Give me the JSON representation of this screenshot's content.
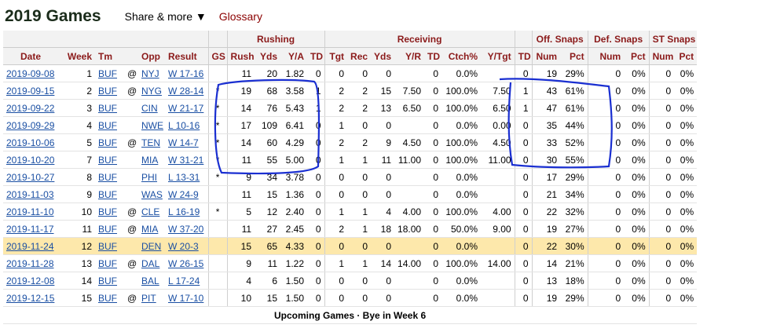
{
  "header": {
    "title": "2019 Games",
    "share_label": "Share & more ▼",
    "glossary_label": "Glossary"
  },
  "groups": {
    "rushing": "Rushing",
    "receiving": "Receiving",
    "off_snaps": "Off. Snaps",
    "def_snaps": "Def. Snaps",
    "st_snaps": "ST Snaps"
  },
  "columns": [
    "Date",
    "Week",
    "Tm",
    "",
    "Opp",
    "Result",
    "GS",
    "Rush",
    "Yds",
    "Y/A",
    "TD",
    "Tgt",
    "Rec",
    "Yds",
    "Y/R",
    "TD",
    "Ctch%",
    "Y/Tgt",
    "TD",
    "Num",
    "Pct",
    "Num",
    "Pct",
    "Num",
    "Pct"
  ],
  "rows": [
    [
      "2019-09-08",
      "1",
      "BUF",
      "@",
      "NYJ",
      "W 17-16",
      "",
      "11",
      "20",
      "1.82",
      "0",
      "0",
      "0",
      "0",
      "",
      "0",
      "0.0%",
      "",
      "0",
      "19",
      "29%",
      "0",
      "0%",
      "0",
      "0%"
    ],
    [
      "2019-09-15",
      "2",
      "BUF",
      "@",
      "NYG",
      "W 28-14",
      "*",
      "19",
      "68",
      "3.58",
      "1",
      "2",
      "2",
      "15",
      "7.50",
      "0",
      "100.0%",
      "7.50",
      "1",
      "43",
      "61%",
      "0",
      "0%",
      "0",
      "0%"
    ],
    [
      "2019-09-22",
      "3",
      "BUF",
      "",
      "CIN",
      "W 21-17",
      "*",
      "14",
      "76",
      "5.43",
      "1",
      "2",
      "2",
      "13",
      "6.50",
      "0",
      "100.0%",
      "6.50",
      "1",
      "47",
      "61%",
      "0",
      "0%",
      "0",
      "0%"
    ],
    [
      "2019-09-29",
      "4",
      "BUF",
      "",
      "NWE",
      "L 10-16",
      "*",
      "17",
      "109",
      "6.41",
      "0",
      "1",
      "0",
      "0",
      "",
      "0",
      "0.0%",
      "0.00",
      "0",
      "35",
      "44%",
      "0",
      "0%",
      "0",
      "0%"
    ],
    [
      "2019-10-06",
      "5",
      "BUF",
      "@",
      "TEN",
      "W 14-7",
      "*",
      "14",
      "60",
      "4.29",
      "0",
      "2",
      "2",
      "9",
      "4.50",
      "0",
      "100.0%",
      "4.50",
      "0",
      "33",
      "52%",
      "0",
      "0%",
      "0",
      "0%"
    ],
    [
      "2019-10-20",
      "7",
      "BUF",
      "",
      "MIA",
      "W 31-21",
      "*",
      "11",
      "55",
      "5.00",
      "0",
      "1",
      "1",
      "11",
      "11.00",
      "0",
      "100.0%",
      "11.00",
      "0",
      "30",
      "55%",
      "0",
      "0%",
      "0",
      "0%"
    ],
    [
      "2019-10-27",
      "8",
      "BUF",
      "",
      "PHI",
      "L 13-31",
      "*",
      "9",
      "34",
      "3.78",
      "0",
      "0",
      "0",
      "0",
      "",
      "0",
      "0.0%",
      "",
      "0",
      "17",
      "29%",
      "0",
      "0%",
      "0",
      "0%"
    ],
    [
      "2019-11-03",
      "9",
      "BUF",
      "",
      "WAS",
      "W 24-9",
      "",
      "11",
      "15",
      "1.36",
      "0",
      "0",
      "0",
      "0",
      "",
      "0",
      "0.0%",
      "",
      "0",
      "21",
      "34%",
      "0",
      "0%",
      "0",
      "0%"
    ],
    [
      "2019-11-10",
      "10",
      "BUF",
      "@",
      "CLE",
      "L 16-19",
      "*",
      "5",
      "12",
      "2.40",
      "0",
      "1",
      "1",
      "4",
      "4.00",
      "0",
      "100.0%",
      "4.00",
      "0",
      "22",
      "32%",
      "0",
      "0%",
      "0",
      "0%"
    ],
    [
      "2019-11-17",
      "11",
      "BUF",
      "@",
      "MIA",
      "W 37-20",
      "",
      "11",
      "27",
      "2.45",
      "0",
      "2",
      "1",
      "18",
      "18.00",
      "0",
      "50.0%",
      "9.00",
      "0",
      "19",
      "27%",
      "0",
      "0%",
      "0",
      "0%"
    ],
    [
      "2019-11-24",
      "12",
      "BUF",
      "",
      "DEN",
      "W 20-3",
      "",
      "15",
      "65",
      "4.33",
      "0",
      "0",
      "0",
      "0",
      "",
      "0",
      "0.0%",
      "",
      "0",
      "22",
      "30%",
      "0",
      "0%",
      "0",
      "0%"
    ],
    [
      "2019-11-28",
      "13",
      "BUF",
      "@",
      "DAL",
      "W 26-15",
      "",
      "9",
      "11",
      "1.22",
      "0",
      "1",
      "1",
      "14",
      "14.00",
      "0",
      "100.0%",
      "14.00",
      "0",
      "14",
      "21%",
      "0",
      "0%",
      "0",
      "0%"
    ],
    [
      "2019-12-08",
      "14",
      "BUF",
      "",
      "BAL",
      "L 17-24",
      "",
      "4",
      "6",
      "1.50",
      "0",
      "0",
      "0",
      "0",
      "",
      "0",
      "0.0%",
      "",
      "0",
      "13",
      "18%",
      "0",
      "0%",
      "0",
      "0%"
    ],
    [
      "2019-12-15",
      "15",
      "BUF",
      "@",
      "PIT",
      "W 17-10",
      "",
      "10",
      "15",
      "1.50",
      "0",
      "0",
      "0",
      "0",
      "",
      "0",
      "0.0%",
      "",
      "0",
      "19",
      "29%",
      "0",
      "0%",
      "0",
      "0%"
    ]
  ],
  "highlighted_row": 10,
  "upcoming_label": "Upcoming Games · Bye in Week 6",
  "annotation_color": "#1a2fd1"
}
